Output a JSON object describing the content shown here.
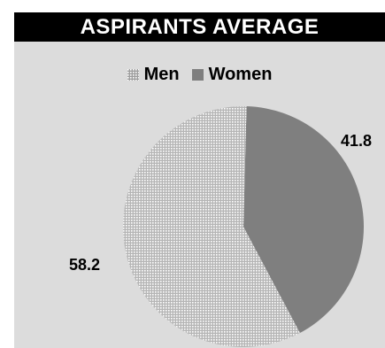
{
  "chart_data": {
    "type": "pie",
    "title": "ASPIRANTS AVERAGE",
    "categories": [
      "Men",
      "Women"
    ],
    "values": [
      58.2,
      41.8
    ],
    "data_labels": [
      "58.2",
      "41.8"
    ],
    "legend_position": "top",
    "colors": {
      "men": "#bdbdbd",
      "men_dots": "#ffffff",
      "women": "#7f7f7f",
      "background": "#dcdcdc",
      "title_bg": "#000000"
    }
  }
}
